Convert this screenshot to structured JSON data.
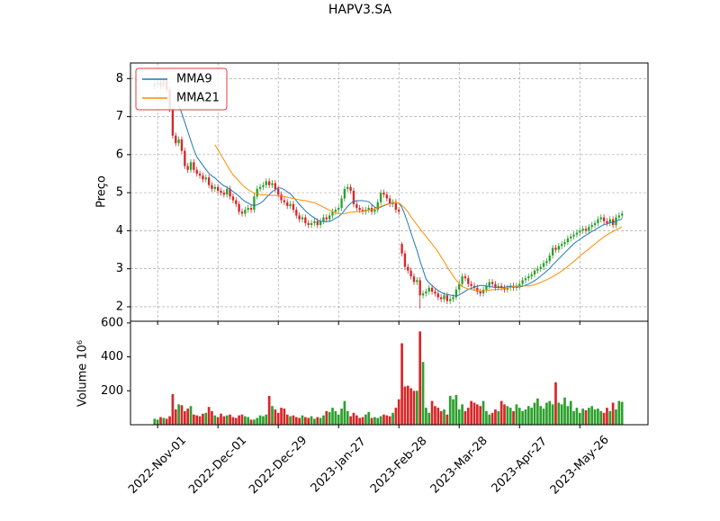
{
  "chart_data": {
    "type": "candlestick",
    "title": "HAPV3.SA",
    "ylabel": "Preço",
    "ylim": [
      1.62,
      8.41
    ],
    "yticks": [
      2,
      3,
      4,
      5,
      6,
      7,
      8
    ],
    "xlim": [
      -8,
      163.6
    ],
    "xticks": [
      {
        "value": 1,
        "label": "2022-Nov-01"
      },
      {
        "value": 21,
        "label": "2022-Dec-01"
      },
      {
        "value": 41,
        "label": "2022-Dec-29"
      },
      {
        "value": 61,
        "label": "2023-Jan-27"
      },
      {
        "value": 81,
        "label": "2023-Feb-28"
      },
      {
        "value": 101,
        "label": "2023-Mar-28"
      },
      {
        "value": 121,
        "label": "2023-Apr-27"
      },
      {
        "value": 141,
        "label": "2023-May-26"
      }
    ],
    "grid": true,
    "legend": "upper left",
    "up_color": "#2ca02c",
    "down_color": "#d62728",
    "candles": [
      [
        7.8,
        7.93,
        7.72,
        7.85
      ],
      [
        7.85,
        7.98,
        7.77,
        7.9
      ],
      [
        7.9,
        7.98,
        7.72,
        7.8
      ],
      [
        7.8,
        8.03,
        7.72,
        7.95
      ],
      [
        7.95,
        8.03,
        7.62,
        7.7
      ],
      [
        7.7,
        7.78,
        7.12,
        7.2
      ],
      [
        7.2,
        7.28,
        6.42,
        6.5
      ],
      [
        6.5,
        6.58,
        6.22,
        6.3
      ],
      [
        6.3,
        6.48,
        6.22,
        6.4
      ],
      [
        6.4,
        6.48,
        6.02,
        6.1
      ],
      [
        6.1,
        6.18,
        5.62,
        5.7
      ],
      [
        5.7,
        5.78,
        5.52,
        5.6
      ],
      [
        5.6,
        5.88,
        5.52,
        5.8
      ],
      [
        5.8,
        5.88,
        5.52,
        5.6
      ],
      [
        5.6,
        5.68,
        5.42,
        5.5
      ],
      [
        5.5,
        5.58,
        5.37,
        5.45
      ],
      [
        5.45,
        5.53,
        5.27,
        5.35
      ],
      [
        5.35,
        5.48,
        5.27,
        5.4
      ],
      [
        5.4,
        5.48,
        5.12,
        5.2
      ],
      [
        5.2,
        5.28,
        5.02,
        5.1
      ],
      [
        5.1,
        5.23,
        5.02,
        5.15
      ],
      [
        5.15,
        5.23,
        4.97,
        5.05
      ],
      [
        5.05,
        5.13,
        4.92,
        5.0
      ],
      [
        5.0,
        5.08,
        4.87,
        4.95
      ],
      [
        4.95,
        5.18,
        4.87,
        5.1
      ],
      [
        5.1,
        5.18,
        4.82,
        4.9
      ],
      [
        4.9,
        4.98,
        4.72,
        4.8
      ],
      [
        4.8,
        4.88,
        4.62,
        4.7
      ],
      [
        4.7,
        4.78,
        4.42,
        4.5
      ],
      [
        4.5,
        4.58,
        4.37,
        4.45
      ],
      [
        4.45,
        4.63,
        4.37,
        4.55
      ],
      [
        4.55,
        4.68,
        4.47,
        4.6
      ],
      [
        4.6,
        4.68,
        4.47,
        4.55
      ],
      [
        4.55,
        4.98,
        4.47,
        4.9
      ],
      [
        4.9,
        5.18,
        4.82,
        5.1
      ],
      [
        5.1,
        5.23,
        5.02,
        5.15
      ],
      [
        5.15,
        5.28,
        5.07,
        5.2
      ],
      [
        5.2,
        5.38,
        5.12,
        5.3
      ],
      [
        5.3,
        5.38,
        5.12,
        5.2
      ],
      [
        5.2,
        5.33,
        5.12,
        5.25
      ],
      [
        5.25,
        5.33,
        5.02,
        5.1
      ],
      [
        5.1,
        5.18,
        4.87,
        4.95
      ],
      [
        4.95,
        5.03,
        4.72,
        4.8
      ],
      [
        4.8,
        4.88,
        4.67,
        4.75
      ],
      [
        4.75,
        4.83,
        4.57,
        4.65
      ],
      [
        4.65,
        4.78,
        4.57,
        4.7
      ],
      [
        4.7,
        4.78,
        4.47,
        4.55
      ],
      [
        4.55,
        4.63,
        4.32,
        4.4
      ],
      [
        4.4,
        4.48,
        4.22,
        4.3
      ],
      [
        4.3,
        4.43,
        4.22,
        4.35
      ],
      [
        4.35,
        4.43,
        4.12,
        4.2
      ],
      [
        4.2,
        4.28,
        4.07,
        4.15
      ],
      [
        4.15,
        4.28,
        4.07,
        4.2
      ],
      [
        4.2,
        4.33,
        4.12,
        4.25
      ],
      [
        4.25,
        4.33,
        4.07,
        4.15
      ],
      [
        4.15,
        4.33,
        4.07,
        4.25
      ],
      [
        4.25,
        4.43,
        4.17,
        4.35
      ],
      [
        4.35,
        4.43,
        4.22,
        4.3
      ],
      [
        4.3,
        4.48,
        4.22,
        4.4
      ],
      [
        4.4,
        4.58,
        4.32,
        4.5
      ],
      [
        4.5,
        4.63,
        4.42,
        4.55
      ],
      [
        4.55,
        4.68,
        4.47,
        4.6
      ],
      [
        4.6,
        4.93,
        4.52,
        4.85
      ],
      [
        4.85,
        5.18,
        4.77,
        5.1
      ],
      [
        5.1,
        5.23,
        5.02,
        5.15
      ],
      [
        5.15,
        5.23,
        4.97,
        5.05
      ],
      [
        5.05,
        5.13,
        4.62,
        4.7
      ],
      [
        4.7,
        4.78,
        4.52,
        4.6
      ],
      [
        4.6,
        4.68,
        4.47,
        4.55
      ],
      [
        4.55,
        4.63,
        4.42,
        4.5
      ],
      [
        4.5,
        4.63,
        4.42,
        4.55
      ],
      [
        4.55,
        4.68,
        4.47,
        4.6
      ],
      [
        4.6,
        4.68,
        4.42,
        4.5
      ],
      [
        4.5,
        4.63,
        4.42,
        4.55
      ],
      [
        4.55,
        4.83,
        4.47,
        4.75
      ],
      [
        4.75,
        5.08,
        4.67,
        5.0
      ],
      [
        5.0,
        5.08,
        4.87,
        4.95
      ],
      [
        4.95,
        5.03,
        4.77,
        4.85
      ],
      [
        4.85,
        4.93,
        4.62,
        4.7
      ],
      [
        4.7,
        4.83,
        4.62,
        4.75
      ],
      [
        4.75,
        4.83,
        4.47,
        4.55
      ],
      [
        4.55,
        4.63,
        4.42,
        4.5
      ],
      [
        3.65,
        3.7,
        3.32,
        3.4
      ],
      [
        3.4,
        3.48,
        2.97,
        3.05
      ],
      [
        3.05,
        3.13,
        2.87,
        2.95
      ],
      [
        2.95,
        3.03,
        2.72,
        2.8
      ],
      [
        2.8,
        2.88,
        2.57,
        2.65
      ],
      [
        2.65,
        2.78,
        2.57,
        2.7
      ],
      [
        2.7,
        2.78,
        1.95,
        2.3
      ],
      [
        2.3,
        2.43,
        2.22,
        2.35
      ],
      [
        2.35,
        2.48,
        2.27,
        2.4
      ],
      [
        2.4,
        2.58,
        2.32,
        2.5
      ],
      [
        2.5,
        2.58,
        2.32,
        2.4
      ],
      [
        2.4,
        2.48,
        2.27,
        2.35
      ],
      [
        2.35,
        2.43,
        2.17,
        2.25
      ],
      [
        2.25,
        2.33,
        2.12,
        2.2
      ],
      [
        2.2,
        2.38,
        2.12,
        2.3
      ],
      [
        2.3,
        2.38,
        2.07,
        2.15
      ],
      [
        2.15,
        2.28,
        2.07,
        2.2
      ],
      [
        2.2,
        2.33,
        2.12,
        2.25
      ],
      [
        2.25,
        2.53,
        2.17,
        2.45
      ],
      [
        2.45,
        2.68,
        2.37,
        2.6
      ],
      [
        2.6,
        2.88,
        2.52,
        2.8
      ],
      [
        2.8,
        2.88,
        2.67,
        2.75
      ],
      [
        2.75,
        2.83,
        2.52,
        2.6
      ],
      [
        2.6,
        2.68,
        2.47,
        2.55
      ],
      [
        2.55,
        2.63,
        2.42,
        2.5
      ],
      [
        2.5,
        2.58,
        2.32,
        2.4
      ],
      [
        2.4,
        2.48,
        2.27,
        2.35
      ],
      [
        2.35,
        2.53,
        2.27,
        2.45
      ],
      [
        2.45,
        2.63,
        2.37,
        2.55
      ],
      [
        2.55,
        2.73,
        2.47,
        2.65
      ],
      [
        2.65,
        2.73,
        2.52,
        2.6
      ],
      [
        2.6,
        2.68,
        2.42,
        2.5
      ],
      [
        2.5,
        2.63,
        2.42,
        2.55
      ],
      [
        2.55,
        2.63,
        2.42,
        2.5
      ],
      [
        2.5,
        2.58,
        2.37,
        2.45
      ],
      [
        2.45,
        2.58,
        2.37,
        2.5
      ],
      [
        2.5,
        2.63,
        2.42,
        2.55
      ],
      [
        2.55,
        2.63,
        2.42,
        2.5
      ],
      [
        2.5,
        2.63,
        2.42,
        2.55
      ],
      [
        2.55,
        2.68,
        2.47,
        2.6
      ],
      [
        2.6,
        2.78,
        2.52,
        2.7
      ],
      [
        2.7,
        2.83,
        2.62,
        2.75
      ],
      [
        2.75,
        2.88,
        2.67,
        2.8
      ],
      [
        2.8,
        2.93,
        2.72,
        2.85
      ],
      [
        2.85,
        3.03,
        2.77,
        2.95
      ],
      [
        2.95,
        3.08,
        2.87,
        3.0
      ],
      [
        3.0,
        3.13,
        2.92,
        3.05
      ],
      [
        3.05,
        3.23,
        2.97,
        3.15
      ],
      [
        3.15,
        3.28,
        3.07,
        3.2
      ],
      [
        3.2,
        3.43,
        3.12,
        3.35
      ],
      [
        3.35,
        3.63,
        3.27,
        3.55
      ],
      [
        3.55,
        3.63,
        3.42,
        3.5
      ],
      [
        3.5,
        3.68,
        3.42,
        3.6
      ],
      [
        3.6,
        3.73,
        3.52,
        3.65
      ],
      [
        3.65,
        3.78,
        3.57,
        3.7
      ],
      [
        3.7,
        3.88,
        3.62,
        3.8
      ],
      [
        3.8,
        3.93,
        3.72,
        3.85
      ],
      [
        3.85,
        3.98,
        3.77,
        3.9
      ],
      [
        3.9,
        4.03,
        3.82,
        3.95
      ],
      [
        3.95,
        4.08,
        3.87,
        4.0
      ],
      [
        4.0,
        4.13,
        3.92,
        4.05
      ],
      [
        4.05,
        4.13,
        3.92,
        4.0
      ],
      [
        4.0,
        4.18,
        3.92,
        4.1
      ],
      [
        4.1,
        4.23,
        4.02,
        4.15
      ],
      [
        4.15,
        4.28,
        4.07,
        4.2
      ],
      [
        4.2,
        4.38,
        4.12,
        4.3
      ],
      [
        4.3,
        4.43,
        4.22,
        4.35
      ],
      [
        4.35,
        4.43,
        4.17,
        4.25
      ],
      [
        4.25,
        4.33,
        4.12,
        4.2
      ],
      [
        4.2,
        4.38,
        4.12,
        4.3
      ],
      [
        4.3,
        4.38,
        4.07,
        4.15
      ],
      [
        4.15,
        4.43,
        4.07,
        4.35
      ],
      [
        4.35,
        4.48,
        4.27,
        4.4
      ],
      [
        4.4,
        4.53,
        4.32,
        4.45
      ]
    ],
    "series": [
      {
        "name": "MMA9",
        "color": "#1f77b4",
        "values": [
          null,
          null,
          null,
          null,
          null,
          null,
          null,
          null,
          7.29,
          7.09,
          6.85,
          6.61,
          6.37,
          6.13,
          5.94,
          5.83,
          5.72,
          5.61,
          5.51,
          5.44,
          5.39,
          5.31,
          5.24,
          5.18,
          5.14,
          5.09,
          5.03,
          4.97,
          4.91,
          4.83,
          4.77,
          4.73,
          4.68,
          4.66,
          4.68,
          4.72,
          4.78,
          4.87,
          4.95,
          5.03,
          5.08,
          5.13,
          5.12,
          5.08,
          5.02,
          4.97,
          4.88,
          4.79,
          4.69,
          4.61,
          4.52,
          4.45,
          4.39,
          4.34,
          4.28,
          4.25,
          4.24,
          4.24,
          4.25,
          4.28,
          4.33,
          4.37,
          4.44,
          4.54,
          4.64,
          4.72,
          4.77,
          4.79,
          4.79,
          4.79,
          4.78,
          4.76,
          4.69,
          4.62,
          4.59,
          4.62,
          4.66,
          4.69,
          4.72,
          4.74,
          4.73,
          4.73,
          4.61,
          4.42,
          4.19,
          3.95,
          3.71,
          3.48,
          3.21,
          2.97,
          2.73,
          2.63,
          2.56,
          2.49,
          2.43,
          2.38,
          2.34,
          2.32,
          2.31,
          2.29,
          2.28,
          2.31,
          2.36,
          2.41,
          2.46,
          2.48,
          2.52,
          2.54,
          2.56,
          2.56,
          2.55,
          2.53,
          2.52,
          2.51,
          2.51,
          2.51,
          2.51,
          2.53,
          2.54,
          2.53,
          2.52,
          2.52,
          2.54,
          2.57,
          2.6,
          2.64,
          2.69,
          2.74,
          2.81,
          2.87,
          2.94,
          3.01,
          3.1,
          3.18,
          3.26,
          3.34,
          3.42,
          3.5,
          3.58,
          3.66,
          3.72,
          3.77,
          3.83,
          3.88,
          3.93,
          3.98,
          4.02,
          4.07,
          4.12,
          4.16,
          4.18,
          4.21,
          4.22,
          4.25,
          4.28,
          4.31
        ]
      },
      {
        "name": "MMA21",
        "color": "#ff8c00",
        "values": [
          null,
          null,
          null,
          null,
          null,
          null,
          null,
          null,
          null,
          null,
          null,
          null,
          null,
          null,
          null,
          null,
          null,
          null,
          null,
          null,
          6.26,
          6.13,
          5.99,
          5.86,
          5.72,
          5.59,
          5.47,
          5.39,
          5.3,
          5.21,
          5.14,
          5.08,
          5.03,
          4.99,
          4.97,
          4.95,
          4.94,
          4.94,
          4.93,
          4.93,
          4.93,
          4.92,
          4.91,
          4.9,
          4.88,
          4.86,
          4.85,
          4.83,
          4.81,
          4.8,
          4.79,
          4.77,
          4.75,
          4.74,
          4.7,
          4.66,
          4.62,
          4.58,
          4.54,
          4.5,
          4.47,
          4.45,
          4.44,
          4.45,
          4.47,
          4.49,
          4.49,
          4.5,
          4.5,
          4.51,
          4.52,
          4.54,
          4.56,
          4.57,
          4.6,
          4.64,
          4.67,
          4.7,
          4.71,
          4.73,
          4.73,
          4.73,
          4.67,
          4.59,
          4.49,
          4.37,
          4.26,
          4.16,
          4.05,
          3.95,
          3.85,
          3.75,
          3.65,
          3.55,
          3.44,
          3.31,
          3.19,
          3.05,
          2.93,
          2.81,
          2.7,
          2.61,
          2.53,
          2.5,
          2.47,
          2.45,
          2.44,
          2.43,
          2.41,
          2.42,
          2.43,
          2.44,
          2.45,
          2.45,
          2.46,
          2.47,
          2.48,
          2.49,
          2.51,
          2.53,
          2.54,
          2.55,
          2.55,
          2.55,
          2.55,
          2.56,
          2.58,
          2.61,
          2.64,
          2.68,
          2.71,
          2.75,
          2.79,
          2.84,
          2.89,
          2.94,
          3.0,
          3.06,
          3.13,
          3.19,
          3.26,
          3.33,
          3.4,
          3.46,
          3.52,
          3.59,
          3.65,
          3.72,
          3.78,
          3.84,
          3.89,
          3.94,
          3.98,
          4.02,
          4.06,
          4.1
        ]
      }
    ],
    "volume": {
      "ylabel": "Volume  10⁶",
      "ylim": [
        0,
        610
      ],
      "yticks": [
        200,
        400,
        600
      ],
      "values": [
        35,
        30,
        45,
        40,
        35,
        50,
        180,
        90,
        120,
        115,
        80,
        95,
        110,
        60,
        55,
        50,
        65,
        70,
        105,
        80,
        55,
        45,
        65,
        50,
        55,
        60,
        45,
        40,
        55,
        60,
        50,
        45,
        30,
        30,
        40,
        55,
        50,
        60,
        170,
        110,
        90,
        70,
        100,
        95,
        60,
        50,
        55,
        45,
        40,
        55,
        45,
        40,
        50,
        35,
        45,
        40,
        55,
        80,
        75,
        100,
        80,
        60,
        95,
        140,
        80,
        50,
        70,
        55,
        40,
        45,
        60,
        75,
        40,
        45,
        40,
        50,
        60,
        55,
        50,
        70,
        100,
        150,
        480,
        225,
        230,
        215,
        200,
        200,
        550,
        370,
        100,
        70,
        140,
        110,
        100,
        80,
        90,
        60,
        170,
        150,
        175,
        90,
        120,
        80,
        100,
        140,
        130,
        120,
        110,
        140,
        80,
        60,
        70,
        90,
        80,
        140,
        120,
        110,
        100,
        80,
        120,
        100,
        80,
        90,
        110,
        100,
        130,
        155,
        110,
        95,
        130,
        140,
        120,
        250,
        130,
        120,
        160,
        110,
        140,
        80,
        100,
        70,
        95,
        85,
        100,
        110,
        90,
        95,
        80,
        70,
        100,
        80,
        130,
        90,
        140,
        135
      ]
    }
  }
}
